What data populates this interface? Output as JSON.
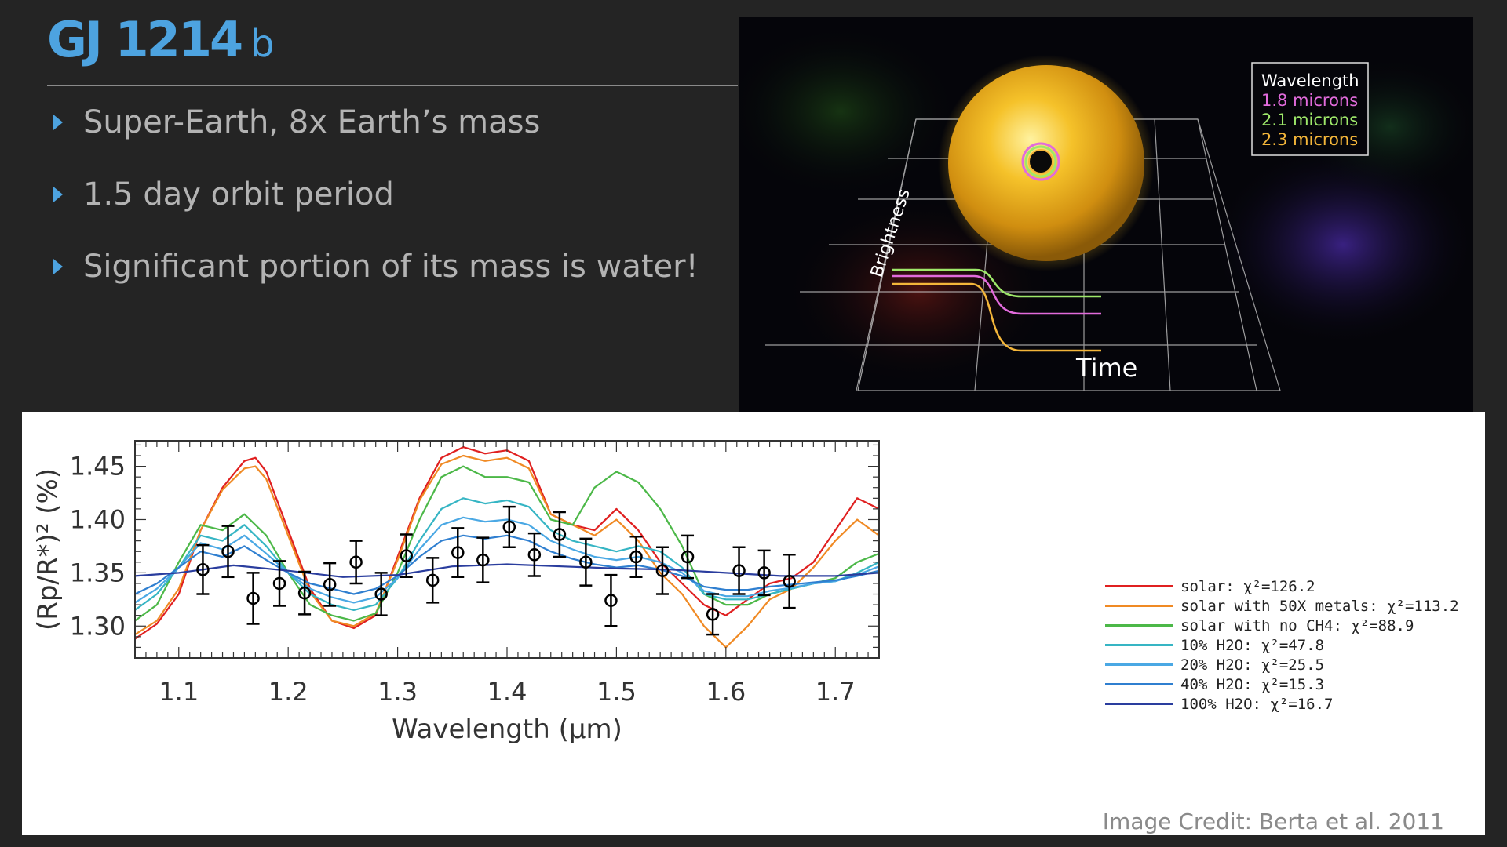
{
  "slide": {
    "title": "GJ 1214",
    "title_suffix": "b",
    "bullets": [
      "Super-Earth, 8x Earth’s mass",
      "1.5 day orbit period",
      "Significant portion of its mass is water!"
    ],
    "credit": "Image Credit: Berta et al. 2011",
    "accent_color": "#4da3e0"
  },
  "illustration": {
    "legend_title": "Wavelength",
    "legend_items": [
      {
        "label": "1.8 microns",
        "color": "#e26bdc"
      },
      {
        "label": "2.1 microns",
        "color": "#9ee86a"
      },
      {
        "label": "2.3 microns",
        "color": "#f4b63a"
      }
    ],
    "y_label": "Brightness",
    "x_label": "Time"
  },
  "chart_data": {
    "type": "line",
    "xlabel": "Wavelength (μm)",
    "ylabel": "(Rp/R*)² (%)",
    "xlim": [
      1.06,
      1.74
    ],
    "ylim": [
      1.27,
      1.474
    ],
    "x_ticks": [
      "1.1",
      "1.2",
      "1.3",
      "1.4",
      "1.5",
      "1.6",
      "1.7"
    ],
    "y_ticks": [
      "1.30",
      "1.35",
      "1.40",
      "1.45"
    ],
    "grid": false,
    "legend_position": "right",
    "series": [
      {
        "name": "solar: χ²=126.2",
        "color": "#e02020",
        "x": [
          1.06,
          1.08,
          1.1,
          1.12,
          1.14,
          1.16,
          1.17,
          1.18,
          1.2,
          1.22,
          1.24,
          1.26,
          1.28,
          1.3,
          1.32,
          1.34,
          1.36,
          1.38,
          1.4,
          1.42,
          1.44,
          1.46,
          1.48,
          1.5,
          1.52,
          1.54,
          1.56,
          1.58,
          1.6,
          1.62,
          1.64,
          1.66,
          1.68,
          1.7,
          1.72,
          1.74
        ],
        "y": [
          1.288,
          1.302,
          1.33,
          1.39,
          1.43,
          1.455,
          1.458,
          1.445,
          1.39,
          1.335,
          1.305,
          1.298,
          1.31,
          1.365,
          1.42,
          1.458,
          1.468,
          1.462,
          1.465,
          1.455,
          1.405,
          1.395,
          1.39,
          1.41,
          1.39,
          1.36,
          1.34,
          1.32,
          1.31,
          1.325,
          1.34,
          1.345,
          1.36,
          1.39,
          1.42,
          1.41
        ]
      },
      {
        "name": "solar with 50X metals: χ²=113.2",
        "color": "#f08a24",
        "x": [
          1.06,
          1.08,
          1.1,
          1.12,
          1.14,
          1.16,
          1.17,
          1.18,
          1.2,
          1.22,
          1.24,
          1.26,
          1.28,
          1.3,
          1.32,
          1.34,
          1.36,
          1.38,
          1.4,
          1.42,
          1.44,
          1.46,
          1.48,
          1.5,
          1.52,
          1.54,
          1.56,
          1.58,
          1.6,
          1.62,
          1.64,
          1.66,
          1.68,
          1.7,
          1.72,
          1.74
        ],
        "y": [
          1.292,
          1.305,
          1.335,
          1.39,
          1.428,
          1.448,
          1.45,
          1.438,
          1.385,
          1.332,
          1.305,
          1.3,
          1.312,
          1.362,
          1.418,
          1.452,
          1.46,
          1.455,
          1.458,
          1.448,
          1.405,
          1.395,
          1.385,
          1.4,
          1.38,
          1.35,
          1.33,
          1.3,
          1.28,
          1.3,
          1.325,
          1.335,
          1.355,
          1.38,
          1.4,
          1.385
        ]
      },
      {
        "name": "solar with no CH4: χ²=88.9",
        "color": "#4cb848",
        "x": [
          1.06,
          1.08,
          1.1,
          1.12,
          1.14,
          1.16,
          1.18,
          1.2,
          1.22,
          1.24,
          1.26,
          1.28,
          1.3,
          1.32,
          1.34,
          1.36,
          1.38,
          1.4,
          1.42,
          1.44,
          1.46,
          1.48,
          1.5,
          1.52,
          1.54,
          1.56,
          1.58,
          1.6,
          1.62,
          1.64,
          1.66,
          1.68,
          1.7,
          1.72,
          1.74
        ],
        "y": [
          1.305,
          1.32,
          1.36,
          1.395,
          1.39,
          1.405,
          1.385,
          1.35,
          1.32,
          1.31,
          1.305,
          1.312,
          1.35,
          1.4,
          1.44,
          1.45,
          1.44,
          1.44,
          1.435,
          1.4,
          1.395,
          1.43,
          1.445,
          1.435,
          1.41,
          1.375,
          1.33,
          1.32,
          1.32,
          1.33,
          1.335,
          1.34,
          1.345,
          1.36,
          1.368
        ]
      },
      {
        "name": "10% H2O: χ²=47.8",
        "color": "#36b5c4",
        "x": [
          1.06,
          1.08,
          1.1,
          1.12,
          1.14,
          1.16,
          1.18,
          1.2,
          1.22,
          1.24,
          1.26,
          1.28,
          1.3,
          1.32,
          1.34,
          1.36,
          1.38,
          1.4,
          1.42,
          1.44,
          1.46,
          1.48,
          1.5,
          1.52,
          1.54,
          1.56,
          1.58,
          1.6,
          1.62,
          1.64,
          1.66,
          1.68,
          1.7,
          1.72,
          1.74
        ],
        "y": [
          1.315,
          1.33,
          1.355,
          1.385,
          1.38,
          1.395,
          1.375,
          1.35,
          1.33,
          1.32,
          1.315,
          1.32,
          1.345,
          1.38,
          1.41,
          1.42,
          1.415,
          1.418,
          1.412,
          1.39,
          1.38,
          1.375,
          1.37,
          1.375,
          1.37,
          1.355,
          1.33,
          1.325,
          1.325,
          1.33,
          1.335,
          1.34,
          1.342,
          1.35,
          1.36
        ]
      },
      {
        "name": "20% H2O: χ²=25.5",
        "color": "#4aa8e4",
        "x": [
          1.06,
          1.08,
          1.1,
          1.12,
          1.14,
          1.16,
          1.18,
          1.2,
          1.22,
          1.24,
          1.26,
          1.28,
          1.3,
          1.32,
          1.34,
          1.36,
          1.38,
          1.4,
          1.42,
          1.44,
          1.46,
          1.48,
          1.5,
          1.52,
          1.54,
          1.56,
          1.58,
          1.6,
          1.62,
          1.64,
          1.66,
          1.68,
          1.7,
          1.72,
          1.74
        ],
        "y": [
          1.322,
          1.335,
          1.355,
          1.378,
          1.372,
          1.385,
          1.368,
          1.35,
          1.335,
          1.327,
          1.322,
          1.327,
          1.345,
          1.372,
          1.395,
          1.402,
          1.398,
          1.4,
          1.395,
          1.38,
          1.372,
          1.365,
          1.362,
          1.365,
          1.36,
          1.35,
          1.333,
          1.328,
          1.328,
          1.333,
          1.336,
          1.34,
          1.342,
          1.348,
          1.356
        ]
      },
      {
        "name": "40% H2O: χ²=15.3",
        "color": "#2f7fd0",
        "x": [
          1.06,
          1.08,
          1.1,
          1.12,
          1.14,
          1.16,
          1.18,
          1.2,
          1.22,
          1.24,
          1.26,
          1.28,
          1.3,
          1.32,
          1.34,
          1.36,
          1.38,
          1.4,
          1.42,
          1.44,
          1.46,
          1.48,
          1.5,
          1.52,
          1.54,
          1.56,
          1.58,
          1.6,
          1.62,
          1.64,
          1.66,
          1.68,
          1.7,
          1.72,
          1.74
        ],
        "y": [
          1.33,
          1.34,
          1.355,
          1.37,
          1.365,
          1.375,
          1.362,
          1.35,
          1.34,
          1.335,
          1.33,
          1.335,
          1.347,
          1.365,
          1.38,
          1.385,
          1.382,
          1.385,
          1.38,
          1.37,
          1.363,
          1.358,
          1.355,
          1.357,
          1.353,
          1.347,
          1.337,
          1.334,
          1.334,
          1.337,
          1.339,
          1.341,
          1.343,
          1.347,
          1.352
        ]
      },
      {
        "name": "100% H2O: χ²=16.7",
        "color": "#2a3d9e",
        "x": [
          1.06,
          1.1,
          1.15,
          1.2,
          1.25,
          1.3,
          1.35,
          1.4,
          1.45,
          1.5,
          1.55,
          1.6,
          1.65,
          1.7,
          1.74
        ],
        "y": [
          1.347,
          1.35,
          1.357,
          1.352,
          1.346,
          1.348,
          1.356,
          1.358,
          1.356,
          1.354,
          1.353,
          1.35,
          1.347,
          1.347,
          1.35
        ]
      }
    ],
    "observations": {
      "x": [
        1.122,
        1.145,
        1.168,
        1.192,
        1.215,
        1.238,
        1.262,
        1.285,
        1.308,
        1.332,
        1.355,
        1.378,
        1.402,
        1.425,
        1.448,
        1.472,
        1.495,
        1.518,
        1.542,
        1.565,
        1.588,
        1.612,
        1.635,
        1.658
      ],
      "y": [
        1.353,
        1.37,
        1.326,
        1.34,
        1.331,
        1.339,
        1.36,
        1.33,
        1.366,
        1.343,
        1.369,
        1.362,
        1.393,
        1.367,
        1.386,
        1.36,
        1.324,
        1.365,
        1.352,
        1.365,
        1.311,
        1.352,
        1.35,
        1.342
      ],
      "err": [
        0.023,
        0.024,
        0.024,
        0.021,
        0.02,
        0.02,
        0.02,
        0.02,
        0.02,
        0.021,
        0.023,
        0.021,
        0.019,
        0.02,
        0.021,
        0.022,
        0.024,
        0.019,
        0.022,
        0.02,
        0.019,
        0.022,
        0.021,
        0.025
      ]
    }
  }
}
